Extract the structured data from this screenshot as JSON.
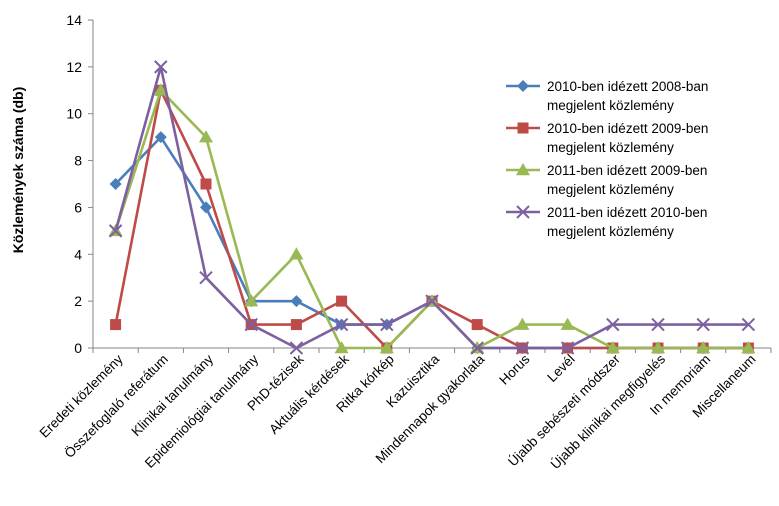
{
  "chart_data": {
    "type": "line",
    "title": "",
    "xlabel": "",
    "ylabel": "Közlemények száma (db)",
    "ylim": [
      0,
      14
    ],
    "yticks": [
      0,
      2,
      4,
      6,
      8,
      10,
      12,
      14
    ],
    "grid": false,
    "legend_position": "top-right",
    "categories": [
      "Eredeti közlemény",
      "Összefoglaló referátum",
      "Klinikai tanulmány",
      "Epidemiológiai tanulmány",
      "PhD-tézisek",
      "Aktuális kérdések",
      "Ritka kórkép",
      "Kazuisztika",
      "Mindennapok gyakorlata",
      "Horus",
      "Levél",
      "Újabb sebészeti módszer",
      "Újabb klinikai megfigyelés",
      "In memoriam",
      "Miscellaneum"
    ],
    "series": [
      {
        "name_lines": [
          "2010-ben idézett 2008-ban",
          "megjelent közlemény"
        ],
        "color": "#4a7ebb",
        "marker": "diamond",
        "values": [
          7,
          9,
          6,
          2,
          2,
          1,
          1,
          2,
          0,
          0,
          0,
          0,
          0,
          0,
          0
        ]
      },
      {
        "name_lines": [
          "2010-ben idézett 2009-ben",
          "megjelent közlemény"
        ],
        "color": "#be4b48",
        "marker": "square",
        "values": [
          1,
          11,
          7,
          1,
          1,
          2,
          0,
          2,
          1,
          0,
          0,
          0,
          0,
          0,
          0
        ]
      },
      {
        "name_lines": [
          "2011-ben idézett 2009-ben",
          "megjelent közlemény"
        ],
        "color": "#98b954",
        "marker": "triangle",
        "values": [
          5,
          11,
          9,
          2,
          4,
          0,
          0,
          2,
          0,
          1,
          1,
          0,
          0,
          0,
          0
        ]
      },
      {
        "name_lines": [
          "2011-ben idézett 2010-ben",
          "megjelent közlemény"
        ],
        "color": "#7d60a0",
        "marker": "x",
        "values": [
          5,
          12,
          3,
          1,
          0,
          1,
          1,
          2,
          0,
          0,
          0,
          1,
          1,
          1,
          1
        ]
      }
    ]
  }
}
